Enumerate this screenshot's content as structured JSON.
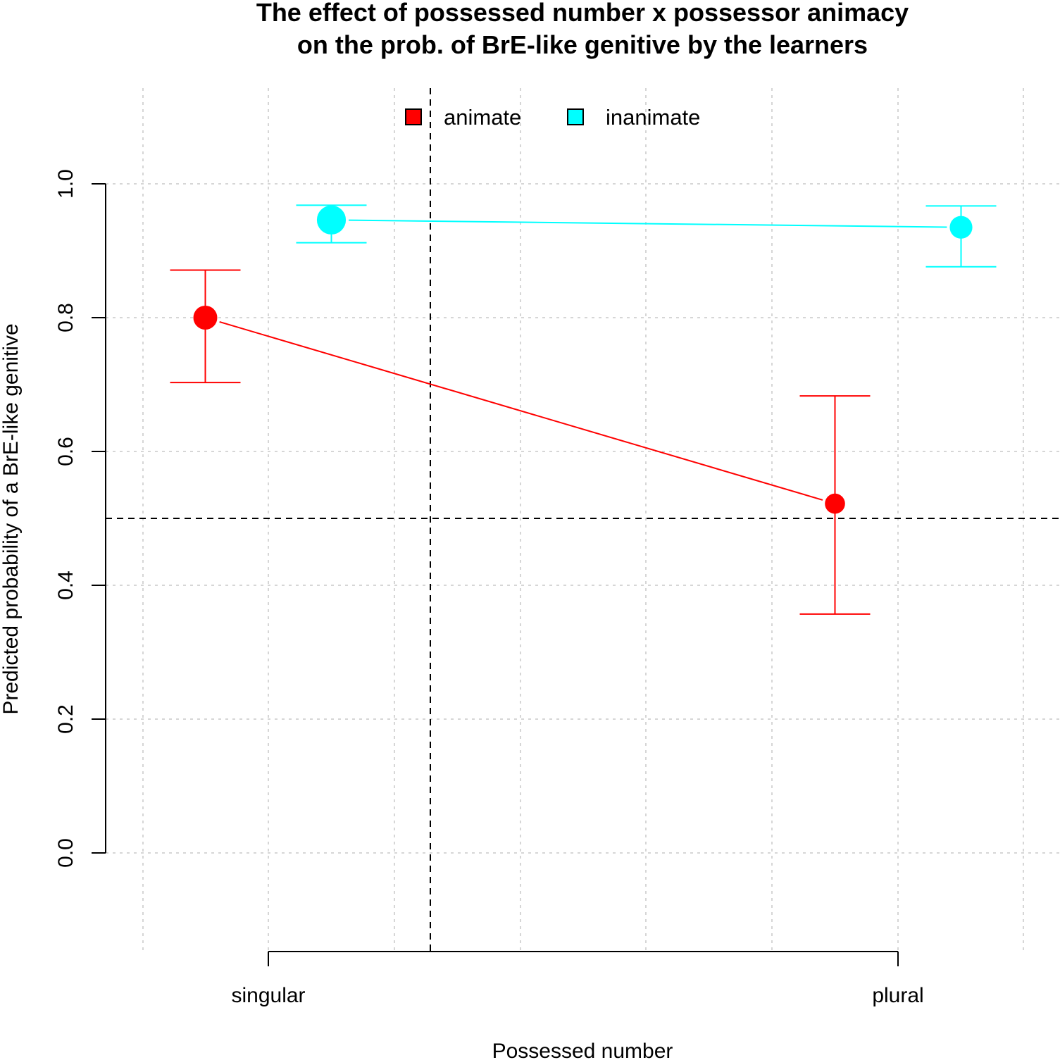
{
  "chart_data": {
    "type": "line",
    "title": [
      "The effect of possessed number x possessor animacy",
      "on the prob. of BrE-like genitive by the learners"
    ],
    "xlabel": "Possessed number",
    "ylabel": "Predicted probability of a BrE-like genitive",
    "categories": [
      "singular",
      "plural"
    ],
    "y_ticks": [
      "0.0",
      "0.2",
      "0.4",
      "0.6",
      "0.8",
      "1.0"
    ],
    "ylim": [
      0.0,
      1.0
    ],
    "reference_line_y": 0.5,
    "grid": true,
    "legend_position": "top-center",
    "series": [
      {
        "name": "animate",
        "color": "#ff0000",
        "values": [
          0.8,
          0.522
        ],
        "ci_lower": [
          0.703,
          0.357
        ],
        "ci_upper": [
          0.871,
          0.683
        ],
        "point_weight": [
          1.0,
          0.7
        ]
      },
      {
        "name": "inanimate",
        "color": "#00ffff",
        "values": [
          0.946,
          0.935
        ],
        "ci_lower": [
          0.912,
          0.876
        ],
        "ci_upper": [
          0.968,
          0.967
        ],
        "point_weight": [
          1.4,
          0.9
        ]
      }
    ]
  }
}
